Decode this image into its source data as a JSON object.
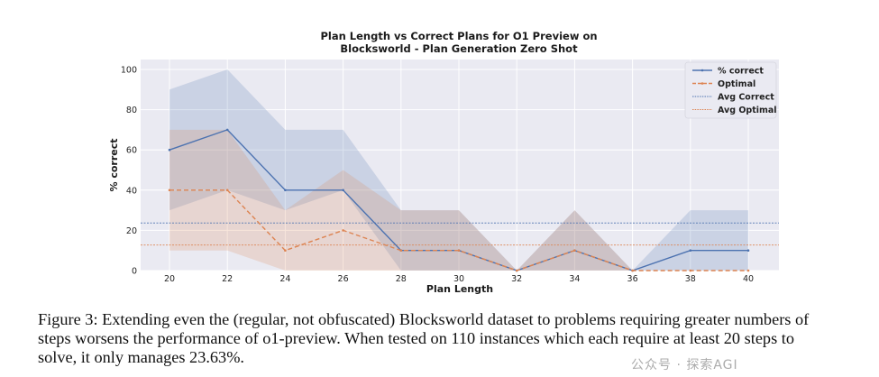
{
  "chart_data": {
    "type": "line",
    "title_lines": [
      "Plan Length vs Correct Plans for O1 Preview on",
      "Blocksworld - Plan Generation Zero Shot"
    ],
    "xlabel": "Plan Length",
    "ylabel": "% correct",
    "x": [
      20,
      22,
      24,
      26,
      28,
      30,
      32,
      34,
      36,
      38,
      40
    ],
    "xlim": [
      19,
      41
    ],
    "ylim": [
      0,
      100
    ],
    "x_ticks": [
      20,
      22,
      24,
      26,
      28,
      30,
      32,
      34,
      36,
      38,
      40
    ],
    "y_ticks": [
      0,
      20,
      40,
      60,
      80,
      100
    ],
    "grid": true,
    "legend_position": "top-right",
    "series": [
      {
        "name": "% correct",
        "style": "solid",
        "color": "#4c72b0",
        "values": [
          60,
          70,
          40,
          40,
          10,
          10,
          0,
          10,
          0,
          10,
          10
        ],
        "band_upper": [
          90,
          100,
          70,
          70,
          30,
          30,
          0,
          30,
          0,
          30,
          30
        ],
        "band_lower": [
          30,
          40,
          30,
          40,
          0,
          0,
          0,
          0,
          0,
          0,
          0
        ]
      },
      {
        "name": "Optimal",
        "style": "dashed",
        "color": "#dd8452",
        "values": [
          40,
          40,
          10,
          20,
          10,
          10,
          0,
          10,
          0,
          0,
          0
        ],
        "band_upper": [
          70,
          70,
          30,
          50,
          30,
          30,
          0,
          30,
          0,
          0,
          0
        ],
        "band_lower": [
          10,
          10,
          0,
          0,
          0,
          0,
          0,
          0,
          0,
          0,
          0
        ]
      }
    ],
    "reference_lines": [
      {
        "name": "Avg Correct",
        "value": 23.63,
        "style": "dotted",
        "color": "#4c72b0"
      },
      {
        "name": "Avg Optimal",
        "value": 12.7,
        "style": "dotted",
        "color": "#dd8452"
      }
    ]
  },
  "caption": {
    "lines": [
      "Figure 3: Extending even the (regular, not obfuscated) Blocksworld dataset to problems requiring greater numbers of",
      "steps worsens the performance of o1-preview. When tested on 110 instances which each require at least 20 steps to",
      "solve, it only manages 23.63%."
    ]
  },
  "watermark": "公众号 · 探索AGI"
}
